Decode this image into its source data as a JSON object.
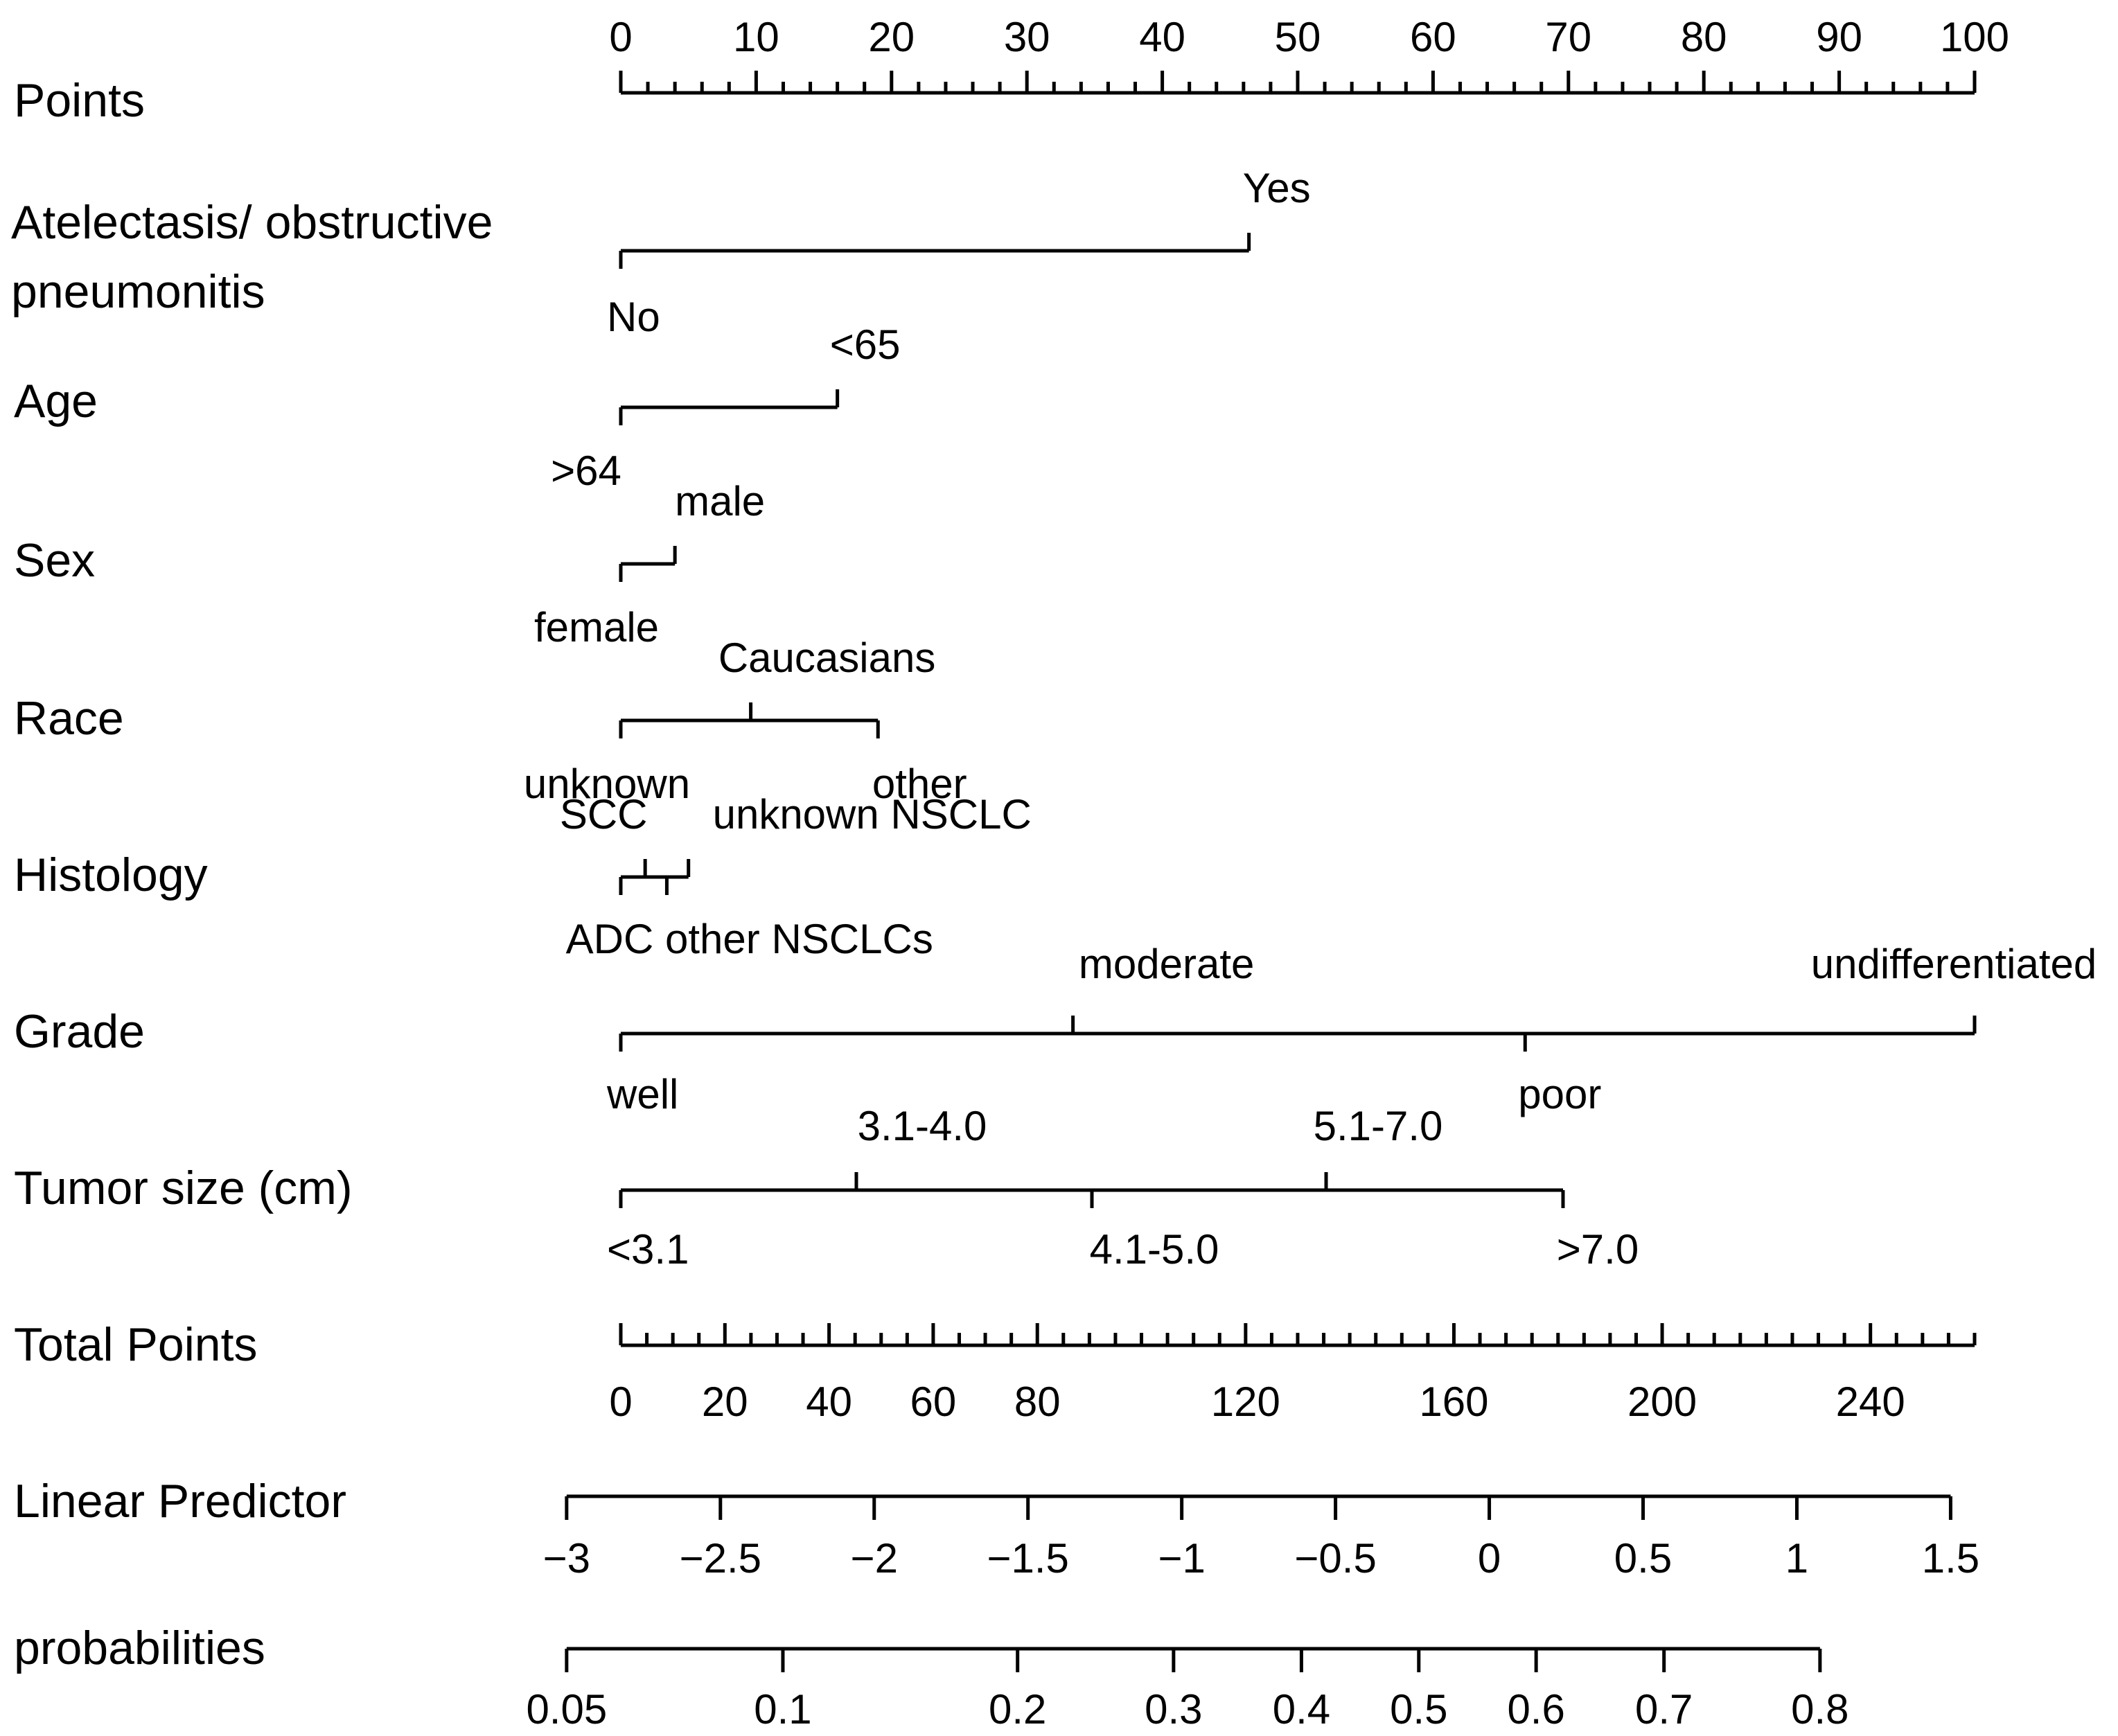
{
  "chart_data": {
    "type": "nomogram",
    "title": "",
    "points_scale": {
      "label": "Points",
      "range": [
        0,
        100
      ],
      "tick_labels": [
        "0",
        "10",
        "20",
        "30",
        "40",
        "50",
        "60",
        "70",
        "80",
        "90",
        "100"
      ],
      "tick_values": [
        0,
        10,
        20,
        30,
        40,
        50,
        60,
        70,
        80,
        90,
        100
      ],
      "minor_step": 2
    },
    "variables": [
      {
        "label": "Atelectasis/ obstructive",
        "label_line2": "pneumonitis",
        "levels": [
          {
            "label": "No",
            "points": 0,
            "side": "below"
          },
          {
            "label": "Yes",
            "points": 46.4,
            "side": "above"
          }
        ]
      },
      {
        "label": "Age",
        "levels": [
          {
            "label": ">64",
            "points": 0,
            "side": "below"
          },
          {
            "label": "<65",
            "points": 16,
            "side": "above"
          }
        ]
      },
      {
        "label": "Sex",
        "levels": [
          {
            "label": "female",
            "points": 0,
            "side": "below"
          },
          {
            "label": "male",
            "points": 4,
            "side": "above"
          }
        ]
      },
      {
        "label": "Race",
        "levels": [
          {
            "label": "unknown",
            "points": 0,
            "side": "below"
          },
          {
            "label": "Caucasians",
            "points": 9.6,
            "side": "above"
          },
          {
            "label": "other",
            "points": 19,
            "side": "below"
          }
        ]
      },
      {
        "label": "Histology",
        "levels": [
          {
            "label": "ADC",
            "points": 0,
            "side": "below"
          },
          {
            "label": "SCC",
            "points": 1.8,
            "side": "above"
          },
          {
            "label": "other NSCLCs",
            "points": 3.4,
            "side": "below"
          },
          {
            "label": "unknown NSCLC",
            "points": 5,
            "side": "above"
          }
        ]
      },
      {
        "label": "Grade",
        "levels": [
          {
            "label": "well",
            "points": 0,
            "side": "below"
          },
          {
            "label": "moderate",
            "points": 33.4,
            "side": "above"
          },
          {
            "label": "poor",
            "points": 66.8,
            "side": "below"
          },
          {
            "label": "undifferentiated",
            "points": 100,
            "side": "above"
          }
        ]
      },
      {
        "label": "Tumor size (cm)",
        "levels": [
          {
            "label": "<3.1",
            "points": 0,
            "side": "below"
          },
          {
            "label": "3.1-4.0",
            "points": 17.4,
            "side": "above"
          },
          {
            "label": "4.1-5.0",
            "points": 34.8,
            "side": "below"
          },
          {
            "label": "5.1-7.0",
            "points": 52.1,
            "side": "above"
          },
          {
            "label": ">7.0",
            "points": 69.6,
            "side": "below"
          }
        ]
      }
    ],
    "total_points": {
      "label": "Total Points",
      "range": [
        0,
        260
      ],
      "tick_labels": [
        "0",
        "20",
        "40",
        "60",
        "80",
        "120",
        "160",
        "200",
        "240"
      ],
      "tick_values": [
        0,
        20,
        40,
        60,
        80,
        120,
        160,
        200,
        240
      ],
      "minor_step": 5
    },
    "linear_predictor": {
      "label": "Linear Predictor",
      "tick_labels": [
        "−3",
        "−2.5",
        "−2",
        "−1.5",
        "−1",
        "−0.5",
        "0",
        "0.5",
        "1",
        "1.5"
      ],
      "tick_values": [
        -3,
        -2.5,
        -2,
        -1.5,
        -1,
        -0.5,
        0,
        0.5,
        1,
        1.5
      ],
      "total_points_at_min": -10.4,
      "total_points_at_max": 255.4
    },
    "probabilities": {
      "label": "probabilities",
      "tick_labels": [
        "0.05",
        "0.1",
        "0.2",
        "0.3",
        "0.4",
        "0.5",
        "0.6",
        "0.7",
        "0.8"
      ],
      "tick_values": [
        0.05,
        0.1,
        0.2,
        0.3,
        0.4,
        0.5,
        0.6,
        0.7,
        0.8
      ]
    }
  }
}
